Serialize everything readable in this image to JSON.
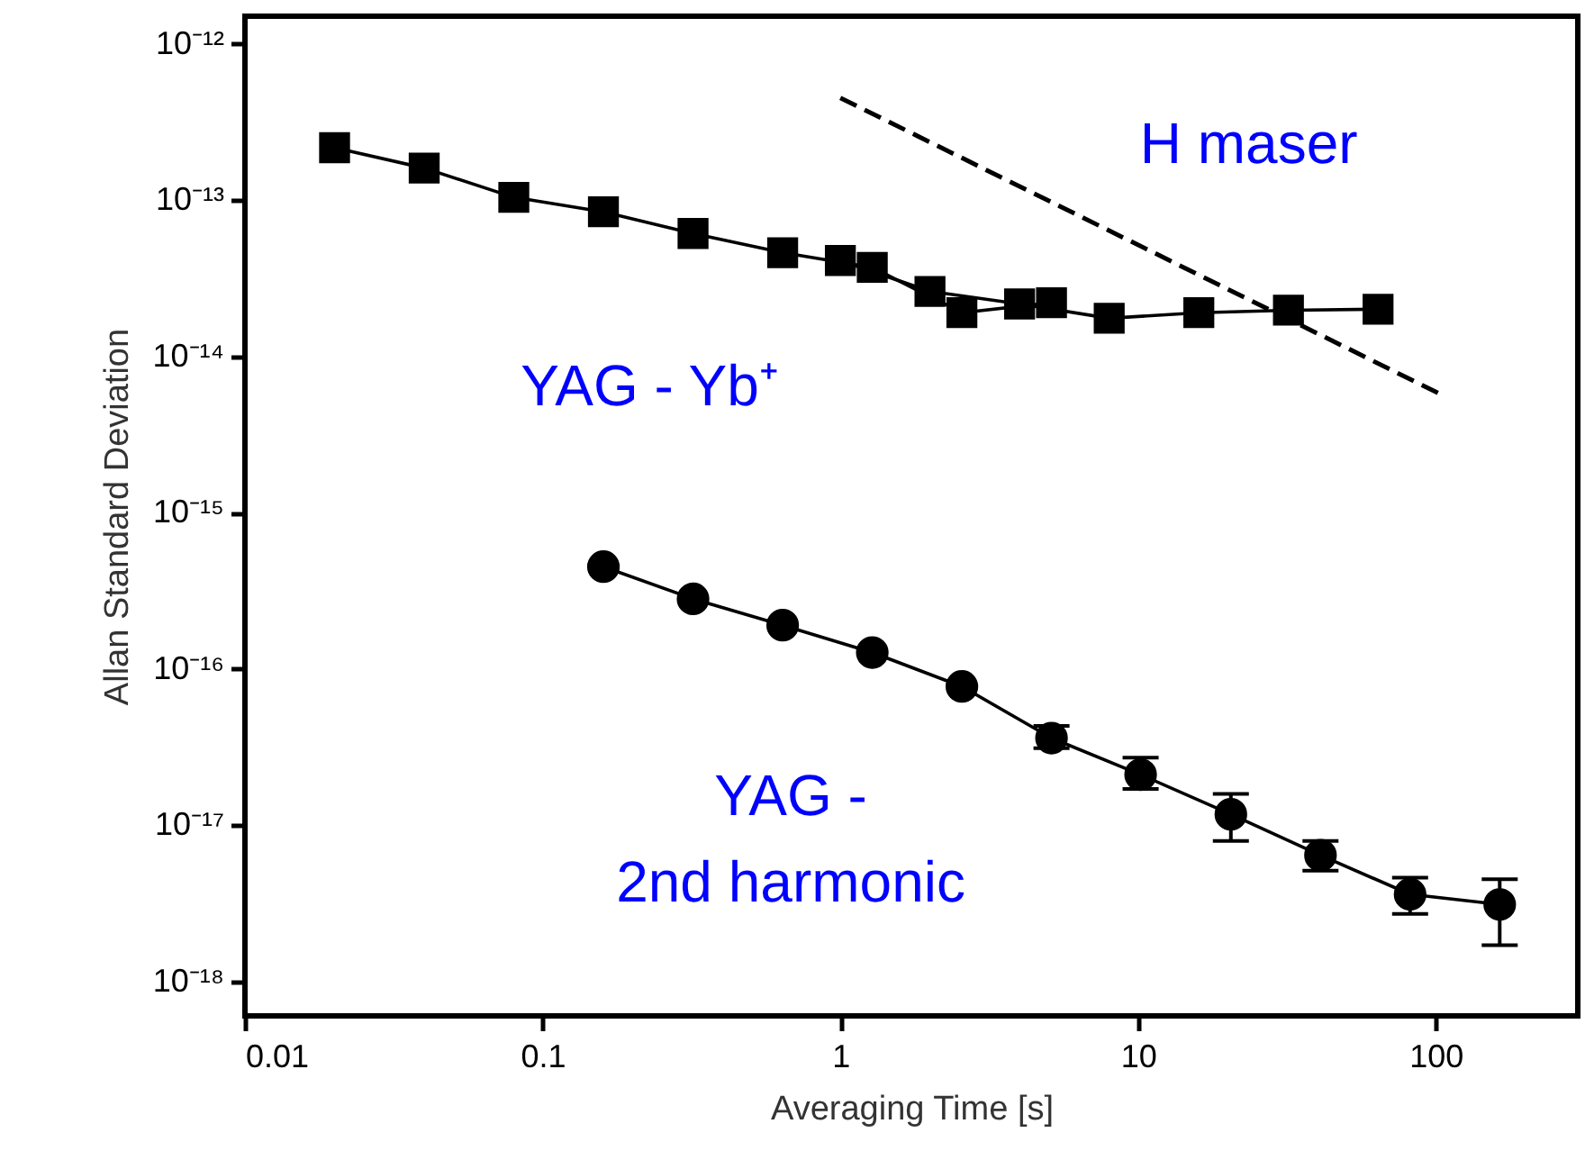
{
  "chart_data": {
    "type": "line",
    "xlabel": "Averaging Time [s]",
    "ylabel": "Allan Standard Deviation",
    "log": "xy",
    "xlim": [
      0.01,
      300
    ],
    "ylim": [
      6e-19,
      1.5e-12
    ],
    "xticks": [
      0.01,
      0.1,
      1,
      10,
      100
    ],
    "yticks": [
      {
        "value": 1e-18,
        "label": "10⁻¹⁸"
      },
      {
        "value": 1e-17,
        "label": "10⁻¹⁷"
      },
      {
        "value": 1e-16,
        "label": "10⁻¹⁶"
      },
      {
        "value": 1e-15,
        "label": "10⁻¹⁵"
      },
      {
        "value": 1e-14,
        "label": "10⁻¹⁴"
      },
      {
        "value": 1e-13,
        "label": "10⁻¹³"
      },
      {
        "value": 1e-12,
        "label": "10⁻¹²"
      }
    ],
    "series": [
      {
        "name": "YAG - Yb⁺",
        "color": "#000000",
        "marker": "square",
        "line_style": "solid",
        "x": [
          0.02,
          0.04,
          0.08,
          0.16,
          0.32,
          0.64,
          1.28,
          2.56,
          5.12
        ],
        "values": [
          2.16e-13,
          1.6e-13,
          1.04e-13,
          8.4e-14,
          6.1e-14,
          4.6e-14,
          3.7e-14,
          1.9e-14,
          2.2e-14
        ]
      },
      {
        "color": "#000000",
        "marker": "square",
        "line_style": "solid",
        "x": [
          1,
          2,
          4,
          8,
          16,
          32,
          64
        ],
        "values": [
          4.1e-14,
          2.6e-14,
          2.16e-14,
          1.75e-14,
          1.9e-14,
          1.97e-14,
          2e-14
        ]
      },
      {
        "name": "YAG -\n2nd harmonic",
        "color": "#000000",
        "marker": "circle",
        "line_style": "solid",
        "x": [
          0.16,
          0.32,
          0.64,
          1.28,
          2.56,
          5.12,
          10.2,
          20.5,
          41,
          82,
          164
        ],
        "values": [
          4.5e-16,
          2.8e-16,
          1.9e-16,
          1.27e-16,
          7.7e-17,
          3.6e-17,
          2.1e-17,
          1.17e-17,
          6.4e-18,
          3.6e-18,
          3.1e-18
        ],
        "errors": [
          null,
          null,
          null,
          null,
          null,
          [
            3.1e-17,
            4.3e-17
          ],
          [
            1.7e-17,
            2.7e-17
          ],
          [
            7.9e-18,
            1.58e-17
          ],
          [
            5.1e-18,
            7.9e-18
          ],
          [
            2.7e-18,
            4.6e-18
          ],
          [
            1.7e-18,
            4.5e-18
          ]
        ]
      },
      {
        "name": "H maser",
        "color": "#000000",
        "marker": "none",
        "line_style": "dashed",
        "x": [
          1,
          106
        ],
        "values": [
          4.5e-13,
          5.6e-15
        ]
      }
    ]
  }
}
